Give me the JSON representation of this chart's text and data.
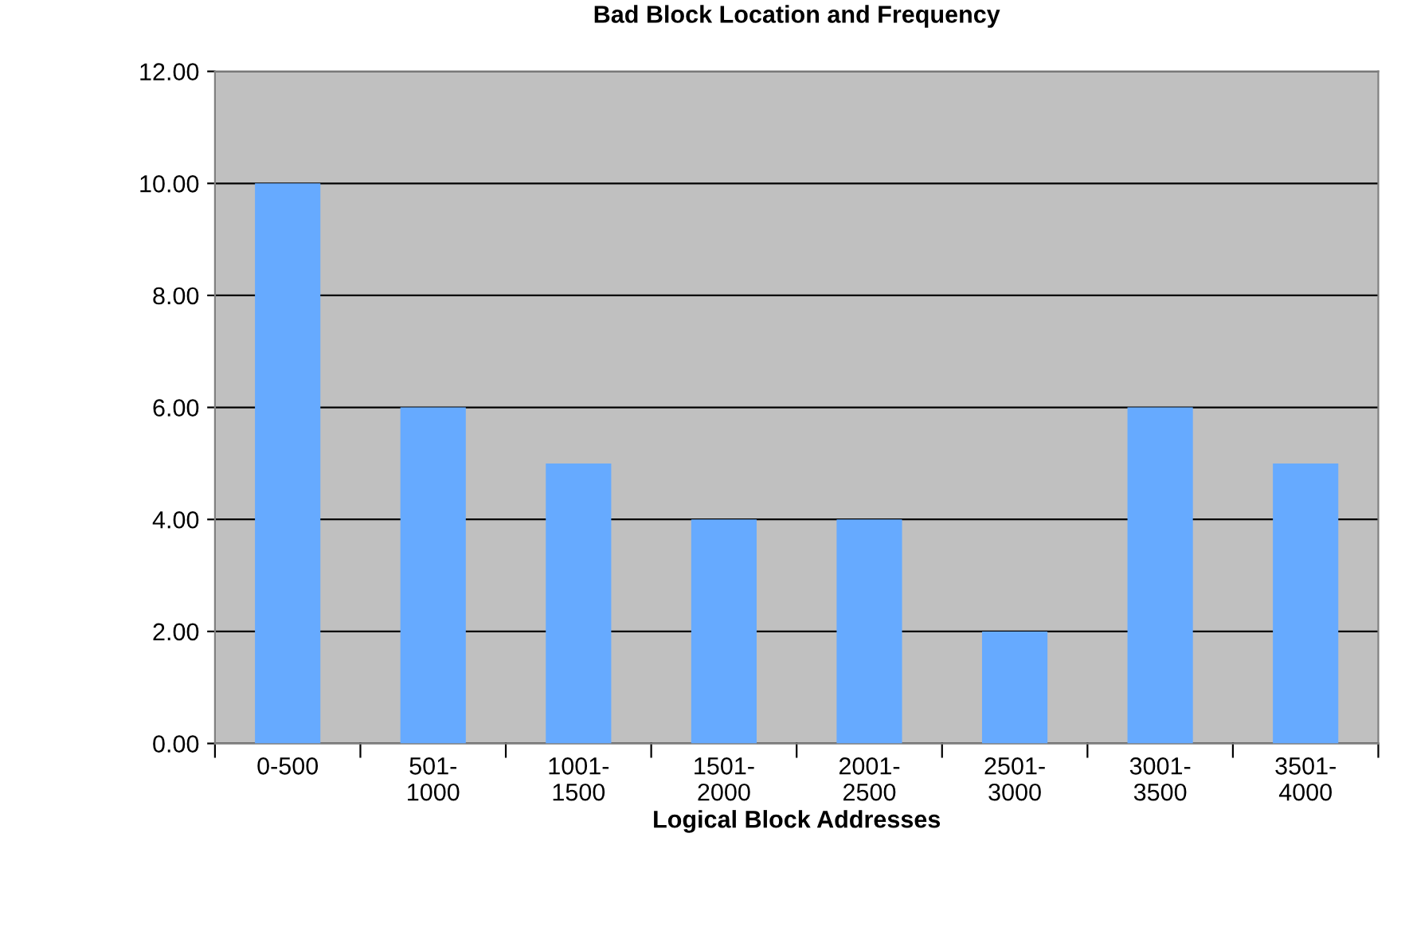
{
  "chart_data": {
    "type": "bar",
    "title": "Bad Block Location and Frequency",
    "xlabel": "Logical Block Addresses",
    "categories": [
      "0-500",
      "501-\n1000",
      "1001-\n1500",
      "1501-\n2000",
      "2001-\n2500",
      "2501-\n3000",
      "3001-\n3500",
      "3501-\n4000"
    ],
    "values": [
      10,
      6,
      5,
      4,
      4,
      2,
      6,
      5
    ],
    "color": "#66aaff",
    "ylim": [
      0,
      12
    ],
    "yticks": [
      {
        "value": 0,
        "label": "0.00"
      },
      {
        "value": 2,
        "label": "2.00"
      },
      {
        "value": 4,
        "label": "4.00"
      },
      {
        "value": 6,
        "label": "6.00"
      },
      {
        "value": 8,
        "label": "8.00"
      },
      {
        "value": 10,
        "label": "10.00"
      },
      {
        "value": 12,
        "label": "12.00"
      }
    ],
    "grid": "y",
    "legend": false
  }
}
